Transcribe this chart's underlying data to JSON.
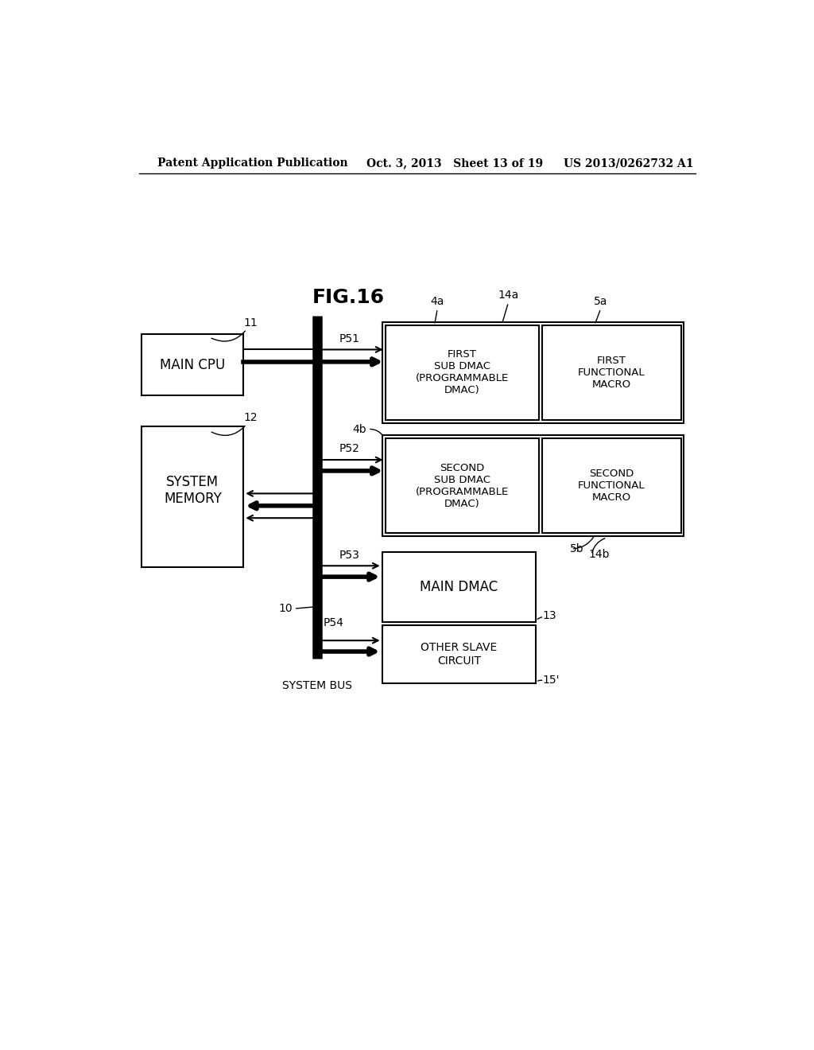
{
  "header_left": "Patent Application Publication",
  "header_center": "Oct. 3, 2013   Sheet 13 of 19",
  "header_right": "US 2013/0262732 A1",
  "background_color": "#ffffff",
  "fig_label": "FIG.16"
}
